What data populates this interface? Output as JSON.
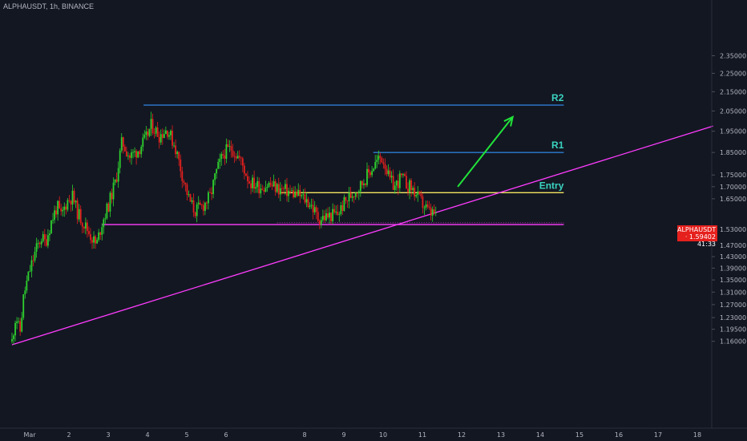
{
  "header": {
    "symbol": "ALPHAUSDT, 1h, BINANCE"
  },
  "price_tag": {
    "symbol": "ALPHAUSDT",
    "price": "1.59402",
    "countdown": "41:33"
  },
  "colors": {
    "background": "#131722",
    "up": "#2ed12e",
    "down": "#e5201d",
    "support": "#ff3cff",
    "resistance": "#2d7dd2",
    "entry": "#f5e663",
    "label": "#3ad3c0",
    "arrow": "#21e33a",
    "axis_text": "#b2b5be"
  },
  "chart_data": {
    "type": "candlestick",
    "title": "ALPHAUSDT, 1h, BINANCE",
    "y_scale": "log",
    "ylim": [
      1.13,
      2.38
    ],
    "y_ticks": [
      "2.35000",
      "2.25000",
      "2.15000",
      "2.05000",
      "1.95000",
      "1.85000",
      "1.75000",
      "1.70000",
      "1.65000",
      "1.59402",
      "1.53000",
      "1.47000",
      "1.43000",
      "1.39000",
      "1.35000",
      "1.31000",
      "1.27000",
      "1.23000",
      "1.19500",
      "1.16000"
    ],
    "x_ticks": [
      "Mar",
      "2",
      "3",
      "4",
      "5",
      "6",
      "8",
      "9",
      "10",
      "11",
      "12",
      "13",
      "14",
      "15",
      "16",
      "17",
      "18"
    ],
    "x_range_days": [
      0.2,
      18.4
    ],
    "last_price": 1.59402,
    "close_path": [
      {
        "t": 0.55,
        "p": 1.16
      },
      {
        "t": 0.65,
        "p": 1.24
      },
      {
        "t": 0.75,
        "p": 1.18
      },
      {
        "t": 0.85,
        "p": 1.3
      },
      {
        "t": 1.0,
        "p": 1.38
      },
      {
        "t": 1.15,
        "p": 1.45
      },
      {
        "t": 1.3,
        "p": 1.5
      },
      {
        "t": 1.4,
        "p": 1.48
      },
      {
        "t": 1.55,
        "p": 1.56
      },
      {
        "t": 1.7,
        "p": 1.62
      },
      {
        "t": 1.8,
        "p": 1.58
      },
      {
        "t": 1.95,
        "p": 1.64
      },
      {
        "t": 2.1,
        "p": 1.66
      },
      {
        "t": 2.2,
        "p": 1.6
      },
      {
        "t": 2.35,
        "p": 1.56
      },
      {
        "t": 2.5,
        "p": 1.52
      },
      {
        "t": 2.7,
        "p": 1.47
      },
      {
        "t": 2.85,
        "p": 1.56
      },
      {
        "t": 3.0,
        "p": 1.62
      },
      {
        "t": 3.2,
        "p": 1.73
      },
      {
        "t": 3.35,
        "p": 1.9
      },
      {
        "t": 3.55,
        "p": 1.83
      },
      {
        "t": 3.75,
        "p": 1.86
      },
      {
        "t": 3.95,
        "p": 1.91
      },
      {
        "t": 4.1,
        "p": 1.98
      },
      {
        "t": 4.3,
        "p": 1.93
      },
      {
        "t": 4.5,
        "p": 1.96
      },
      {
        "t": 4.7,
        "p": 1.88
      },
      {
        "t": 4.9,
        "p": 1.74
      },
      {
        "t": 5.05,
        "p": 1.65
      },
      {
        "t": 5.2,
        "p": 1.6
      },
      {
        "t": 5.4,
        "p": 1.62
      },
      {
        "t": 5.6,
        "p": 1.66
      },
      {
        "t": 5.75,
        "p": 1.76
      },
      {
        "t": 5.95,
        "p": 1.85
      },
      {
        "t": 6.15,
        "p": 1.87
      },
      {
        "t": 6.35,
        "p": 1.82
      },
      {
        "t": 6.6,
        "p": 1.72
      },
      {
        "t": 6.85,
        "p": 1.7
      },
      {
        "t": 7.1,
        "p": 1.71
      },
      {
        "t": 7.35,
        "p": 1.69
      },
      {
        "t": 7.6,
        "p": 1.68
      },
      {
        "t": 7.9,
        "p": 1.66
      },
      {
        "t": 8.15,
        "p": 1.63
      },
      {
        "t": 8.35,
        "p": 1.57
      },
      {
        "t": 8.6,
        "p": 1.58
      },
      {
        "t": 8.85,
        "p": 1.59
      },
      {
        "t": 9.0,
        "p": 1.63
      },
      {
        "t": 9.2,
        "p": 1.67
      },
      {
        "t": 9.4,
        "p": 1.7
      },
      {
        "t": 9.6,
        "p": 1.75
      },
      {
        "t": 9.8,
        "p": 1.8
      },
      {
        "t": 9.95,
        "p": 1.83
      },
      {
        "t": 10.05,
        "p": 1.8
      },
      {
        "t": 10.15,
        "p": 1.73
      },
      {
        "t": 10.3,
        "p": 1.7
      },
      {
        "t": 10.45,
        "p": 1.74
      },
      {
        "t": 10.6,
        "p": 1.71
      },
      {
        "t": 10.75,
        "p": 1.69
      },
      {
        "t": 10.9,
        "p": 1.65
      },
      {
        "t": 11.05,
        "p": 1.62
      },
      {
        "t": 11.2,
        "p": 1.59
      },
      {
        "t": 11.35,
        "p": 1.594
      }
    ],
    "annotations": [
      {
        "type": "hline",
        "label": "R2",
        "price": 2.08,
        "from": 3.9,
        "to": 14.6,
        "color": "#2d7dd2"
      },
      {
        "type": "hline",
        "label": "R1",
        "price": 1.85,
        "from": 9.75,
        "to": 14.6,
        "color": "#2d7dd2"
      },
      {
        "type": "hline",
        "label": "Entry",
        "price": 1.675,
        "from": 7.4,
        "to": 14.6,
        "color": "#f5e663"
      },
      {
        "type": "hline",
        "label": "",
        "price": 1.548,
        "from": 2.85,
        "to": 14.6,
        "color": "#ff3cff"
      },
      {
        "type": "trendline",
        "from": {
          "t": 0.55,
          "p": 1.15
        },
        "to": {
          "t": 18.4,
          "p": 1.975
        },
        "color": "#ff3cff"
      },
      {
        "type": "arrow",
        "from": {
          "t": 11.9,
          "p": 1.7
        },
        "to": {
          "t": 13.3,
          "p": 2.02
        },
        "color": "#21e33a"
      }
    ]
  }
}
